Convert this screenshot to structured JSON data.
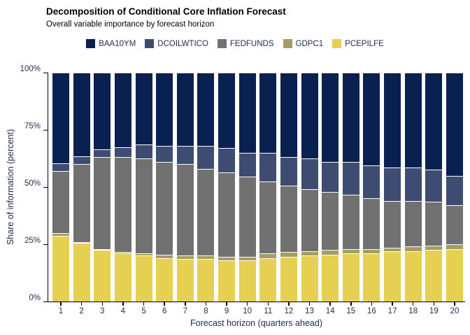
{
  "chart_data": {
    "type": "bar",
    "stacked": true,
    "title": "Decomposition of Conditional Core Inflation Forecast",
    "subtitle": "Overall variable importance by forecast horizon",
    "xlabel": "Forecast horizon (quarters ahead)",
    "ylabel": "Share of information (percent)",
    "legend_position": "top",
    "grid": false,
    "ylim": [
      0,
      100
    ],
    "y_axis": {
      "tick_values": [
        0,
        25,
        50,
        75,
        100
      ],
      "tick_labels": [
        "0%",
        "25%",
        "50%",
        "75%",
        "100%"
      ]
    },
    "categories": [
      "1",
      "2",
      "3",
      "4",
      "5",
      "6",
      "7",
      "8",
      "9",
      "10",
      "11",
      "12",
      "13",
      "14",
      "15",
      "16",
      "17",
      "18",
      "19",
      "20"
    ],
    "stack_order": "first series on top, last series at bottom",
    "series": [
      {
        "name": "BAA10YM",
        "color": "#092150",
        "values": [
          39.5,
          36.5,
          33.5,
          32.5,
          31.5,
          32,
          32,
          32,
          33,
          35,
          35,
          37,
          37.5,
          39,
          39,
          40.5,
          41.5,
          41.5,
          42.5,
          45
        ]
      },
      {
        "name": "DCOILWTICO",
        "color": "#3d4c70",
        "values": [
          3.5,
          3.5,
          3.5,
          4.5,
          6,
          7,
          8,
          10,
          10.5,
          10.5,
          12.5,
          12.5,
          13.5,
          13,
          14.5,
          14.5,
          14.5,
          14.5,
          14,
          13
        ]
      },
      {
        "name": "FEDFUNDS",
        "color": "#717171",
        "values": [
          27,
          34,
          40,
          41.5,
          41.5,
          40.5,
          40,
          38,
          37,
          35,
          31.5,
          29,
          27,
          25.5,
          23.5,
          22,
          20.5,
          20,
          19,
          17
        ]
      },
      {
        "name": "GDPC1",
        "color": "#a59c64",
        "values": [
          1.5,
          0.5,
          0.5,
          0.5,
          1,
          1.5,
          1.5,
          1.5,
          1.5,
          1.5,
          2,
          2,
          2,
          2,
          2,
          2,
          1.5,
          2,
          2,
          2
        ]
      },
      {
        "name": "PCEPILFE",
        "color": "#e5d051",
        "values": [
          28.5,
          25.5,
          22.5,
          21,
          20,
          19,
          18.5,
          18.5,
          18,
          18,
          19,
          19.5,
          20,
          20.5,
          21,
          21,
          22,
          22,
          22.5,
          23
        ]
      }
    ],
    "colors": {
      "axis_text": "#1e2c52",
      "axis_line": "#000000",
      "segment_separator": "#ffffff",
      "background": "#ffffff"
    }
  }
}
